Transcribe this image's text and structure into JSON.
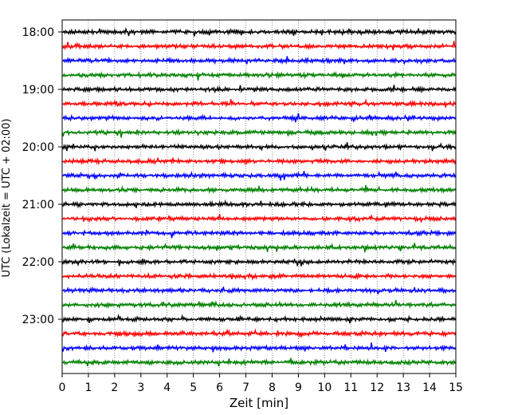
{
  "chart_data": {
    "type": "line",
    "subtype": "helicorder",
    "xlabel": "Zeit  [min]",
    "ylabel": "UTC (Lokalzeit = UTC + 02:00)",
    "xlim": [
      0,
      15
    ],
    "x_ticks": [
      "0",
      "1",
      "2",
      "3",
      "4",
      "5",
      "6",
      "7",
      "8",
      "9",
      "10",
      "11",
      "12",
      "13",
      "14",
      "15"
    ],
    "y_ticks": [
      "18:00",
      "19:00",
      "20:00",
      "21:00",
      "22:00",
      "23:00"
    ],
    "x_grid": "dotted",
    "trace_colors": [
      "#000000",
      "#ff0000",
      "#0000ff",
      "#008000"
    ],
    "trace_rows": [
      "18:00",
      "18:15",
      "18:30",
      "18:45",
      "19:00",
      "19:15",
      "19:30",
      "19:45",
      "20:00",
      "20:15",
      "20:30",
      "20:45",
      "21:00",
      "21:15",
      "21:30",
      "21:45",
      "22:00",
      "22:15",
      "22:30",
      "22:45",
      "23:00",
      "23:15",
      "23:30",
      "23:45"
    ]
  }
}
